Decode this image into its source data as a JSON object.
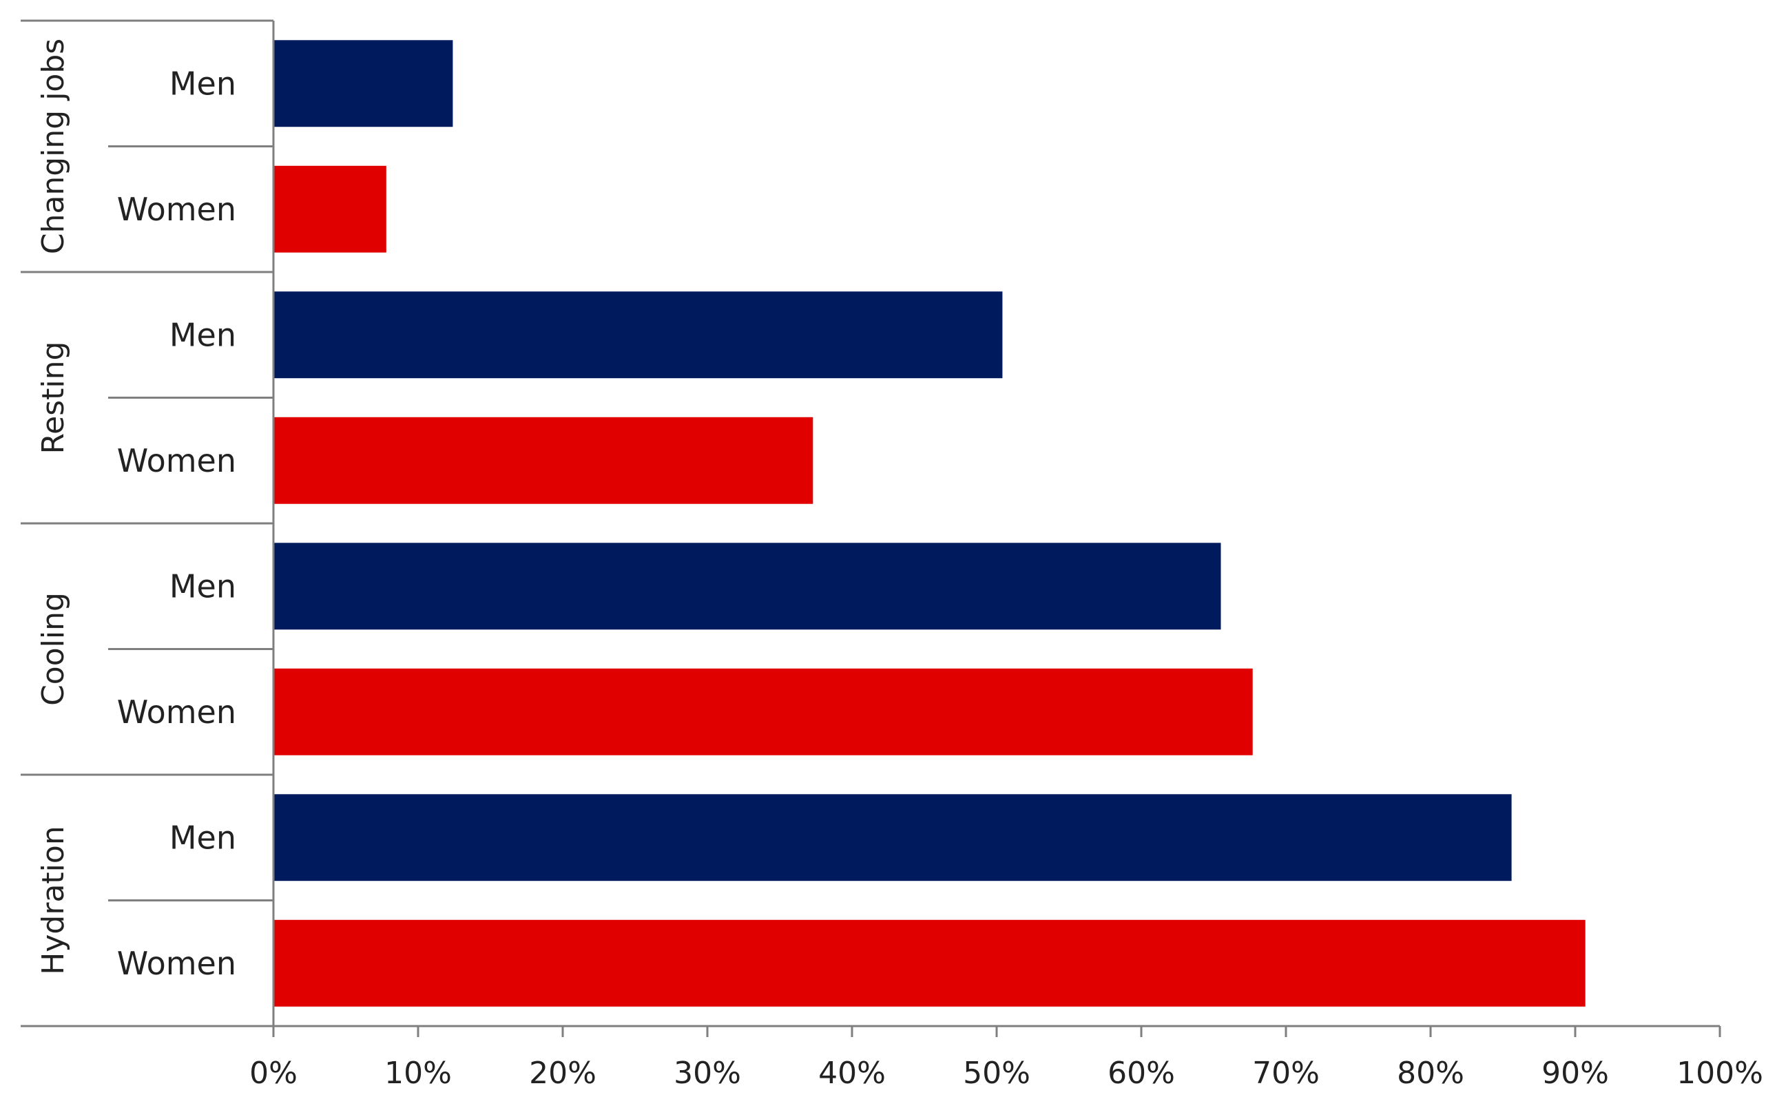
{
  "chart_data": {
    "type": "bar",
    "orientation": "horizontal",
    "title": "",
    "xlabel": "",
    "ylabel": "",
    "xlim": [
      0,
      100
    ],
    "x_tick_labels": [
      "0%",
      "10%",
      "20%",
      "30%",
      "40%",
      "50%",
      "60%",
      "70%",
      "80%",
      "90%",
      "100%"
    ],
    "grid": false,
    "legend": null,
    "colors": {
      "Men": "#001a5e",
      "Women": "#e00000",
      "axis": "#7f7f7f",
      "text": "#222222"
    },
    "groups": [
      {
        "label": "Changing jobs",
        "bars": [
          {
            "label": "Men",
            "value": 12.4
          },
          {
            "label": "Women",
            "value": 7.8
          }
        ]
      },
      {
        "label": "Resting",
        "bars": [
          {
            "label": "Men",
            "value": 50.4
          },
          {
            "label": "Women",
            "value": 37.3
          }
        ]
      },
      {
        "label": "Cooling",
        "bars": [
          {
            "label": "Men",
            "value": 65.5
          },
          {
            "label": "Women",
            "value": 67.7
          }
        ]
      },
      {
        "label": "Hydration",
        "bars": [
          {
            "label": "Men",
            "value": 85.6
          },
          {
            "label": "Women",
            "value": 90.7
          }
        ]
      }
    ]
  }
}
